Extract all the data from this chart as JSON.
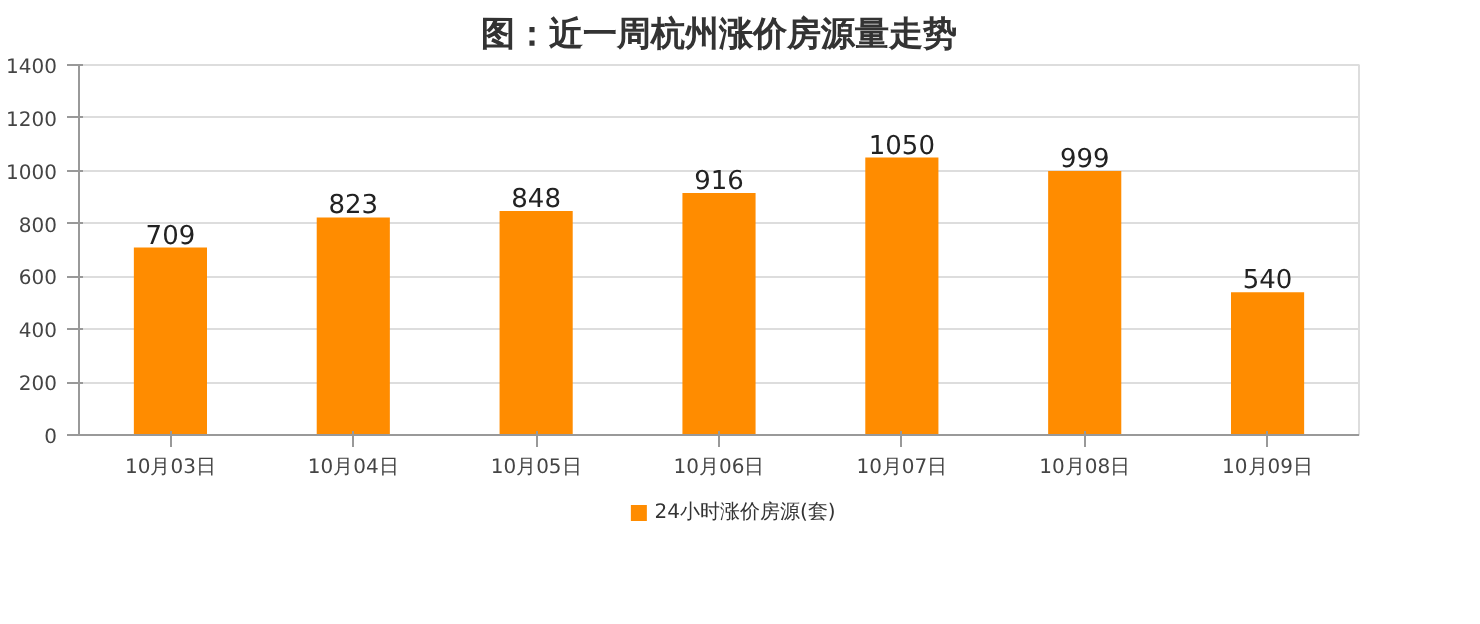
{
  "chart_data": {
    "type": "bar",
    "title": "图：近一周杭州涨价房源量走势",
    "categories": [
      "10月03日",
      "10月04日",
      "10月05日",
      "10月06日",
      "10月07日",
      "10月08日",
      "10月09日"
    ],
    "series": [
      {
        "name": "24小时涨价房源(套)",
        "color": "#ff8c00",
        "values": [
          709,
          823,
          848,
          916,
          1050,
          999,
          540
        ]
      }
    ],
    "ylim": [
      0,
      1400
    ],
    "yticks": [
      0,
      200,
      400,
      600,
      800,
      1000,
      1200,
      1400
    ],
    "grid": "y",
    "legend": "bottom",
    "data_labels": true
  }
}
